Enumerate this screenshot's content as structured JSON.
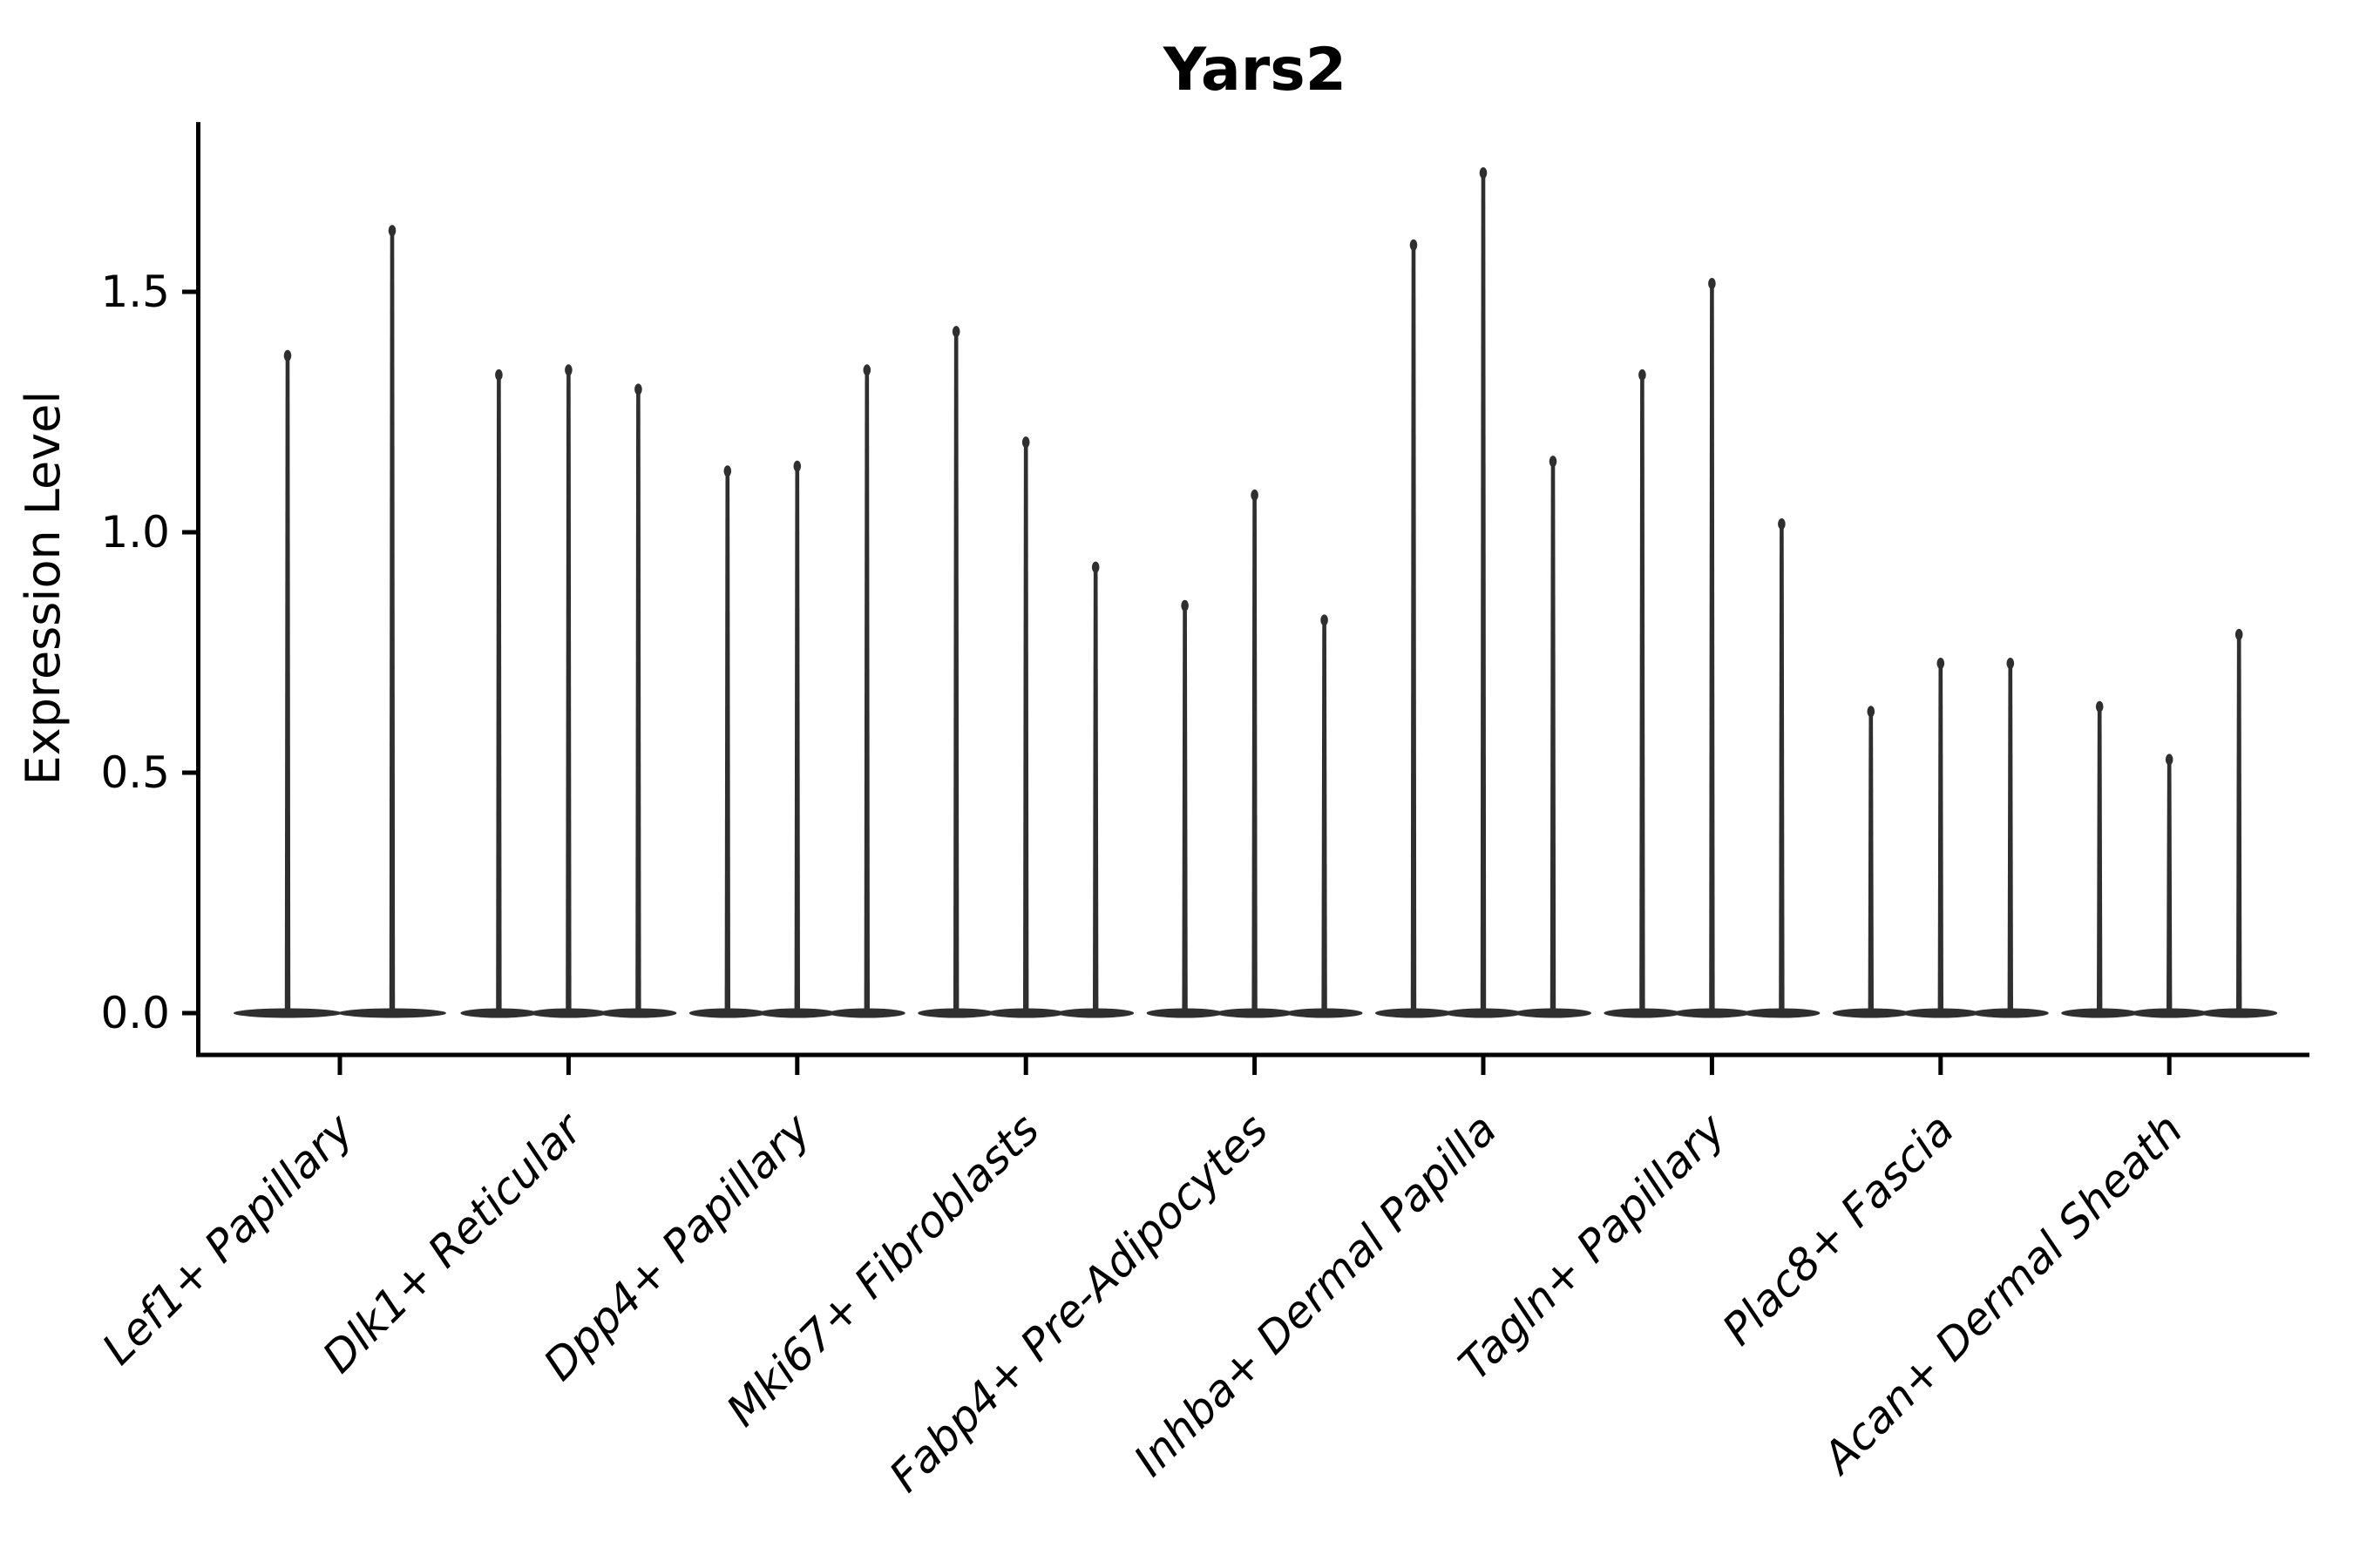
{
  "chart_data": {
    "type": "violin",
    "title": "Yars2",
    "ylabel": "Expression Level",
    "xlabel": "",
    "grid": false,
    "legend": null,
    "ylim": [
      -0.087,
      1.853
    ],
    "yticks": [
      0,
      0.5,
      1.0,
      1.5
    ],
    "ytick_labels": [
      "0.0",
      "0.5",
      "1.0",
      "1.5"
    ],
    "violin_color": "#2f2f2f",
    "axis_color": "#000000",
    "baseline_value": 0,
    "groups": [
      {
        "label": "Lef1+ Papillary",
        "maxima": [
          1.38,
          1.64
        ]
      },
      {
        "label": "Dlk1+ Reticular",
        "maxima": [
          1.34,
          1.35,
          1.31
        ]
      },
      {
        "label": "Dpp4+ Papillary",
        "maxima": [
          1.14,
          1.15,
          1.35
        ]
      },
      {
        "label": "Mki67+ Fibroblasts",
        "maxima": [
          1.43,
          1.2,
          0.94
        ]
      },
      {
        "label": "Fabp4+ Pre-Adipocytes",
        "maxima": [
          0.86,
          1.09,
          0.83
        ]
      },
      {
        "label": "Inhba+ Dermal Papilla",
        "maxima": [
          1.61,
          1.76,
          1.16
        ]
      },
      {
        "label": "Tagln+ Papillary",
        "maxima": [
          1.34,
          1.53,
          1.03
        ]
      },
      {
        "label": "Plac8+ Fascia",
        "maxima": [
          0.64,
          0.74,
          0.74
        ]
      },
      {
        "label": "Acan+ Dermal Sheath",
        "maxima": [
          0.65,
          0.54,
          0.8
        ]
      }
    ]
  }
}
